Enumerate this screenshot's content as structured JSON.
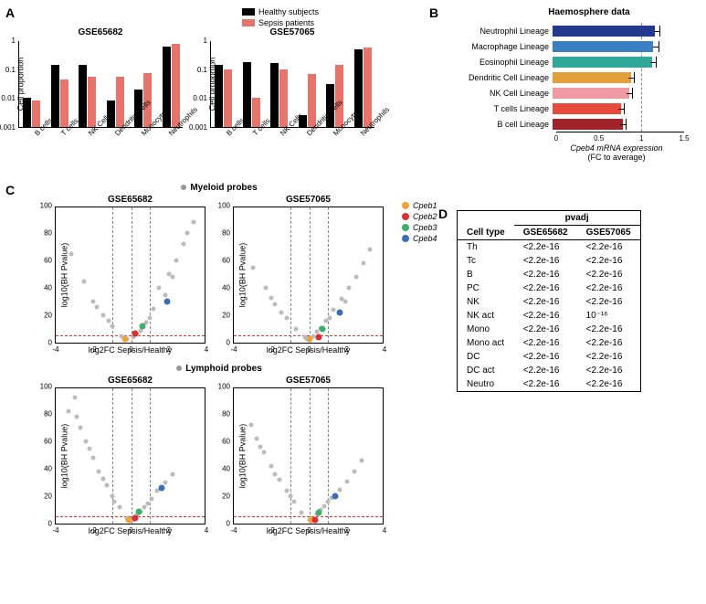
{
  "panelA": {
    "label": "A",
    "legend": [
      {
        "label": "Healthy subjects",
        "color": "#000000"
      },
      {
        "label": "Sepsis patients",
        "color": "#e8736a"
      }
    ],
    "ylabel": "Cell proportion",
    "yticks": [
      {
        "label": "1",
        "value": 1
      },
      {
        "label": "0.1",
        "value": 0.1
      },
      {
        "label": "0.01",
        "value": 0.01
      },
      {
        "label": "0.001",
        "value": 0.001
      }
    ],
    "ymin": 0.001,
    "ymax": 1,
    "charts": [
      {
        "title": "GSE65682",
        "categories": [
          "B cells",
          "T cells",
          "NK Cells",
          "Dendritic Cells",
          "Monocytes",
          "Neutrophils"
        ],
        "healthy": [
          0.01,
          0.14,
          0.14,
          0.008,
          0.02,
          0.62
        ],
        "sepsis": [
          0.008,
          0.045,
          0.055,
          0.055,
          0.075,
          0.75
        ]
      },
      {
        "title": "GSE57065",
        "categories": [
          "B cells",
          "T cells",
          "NK Cells",
          "Dendritic Cells",
          "Monocytes",
          "Neutrophils"
        ],
        "healthy": [
          0.14,
          0.17,
          0.16,
          0.0025,
          0.03,
          0.5
        ],
        "sepsis": [
          0.1,
          0.01,
          0.095,
          0.07,
          0.14,
          0.55
        ]
      }
    ]
  },
  "panelB": {
    "label": "B",
    "title": "Haemosphere data",
    "xlabel_line1": "Cpeb4 mRNA expression",
    "xlabel_line2": "(FC  to average)",
    "xmax": 1.5,
    "xticks": [
      0,
      0.5,
      1.0,
      1.5
    ],
    "dashed_at": 1.0,
    "rows": [
      {
        "label": "Neutrophil Lineage",
        "value": 1.2,
        "err": 0.06,
        "color": "#22398f"
      },
      {
        "label": "Macrophage Lineage",
        "value": 1.18,
        "err": 0.07,
        "color": "#3a7fc3"
      },
      {
        "label": "Eosinophil Lineage",
        "value": 1.17,
        "err": 0.05,
        "color": "#2fa89a"
      },
      {
        "label": "Dendritic Cell Lineage",
        "value": 0.92,
        "err": 0.04,
        "color": "#e6a039"
      },
      {
        "label": "NK Cell Lineage",
        "value": 0.9,
        "err": 0.04,
        "color": "#ef9aa0"
      },
      {
        "label": "T cells Lineage",
        "value": 0.8,
        "err": 0.05,
        "color": "#e54a3b"
      },
      {
        "label": "B cell Lineage",
        "value": 0.82,
        "err": 0.05,
        "color": "#a2242b"
      }
    ]
  },
  "panelC": {
    "label": "C",
    "legend": [
      {
        "label": "Cpeb1",
        "color": "#f0a33c"
      },
      {
        "label": "Cpeb2",
        "color": "#d82f2f"
      },
      {
        "label": "Cpeb3",
        "color": "#3cb06a"
      },
      {
        "label": "Cpeb4",
        "color": "#3b6fb5"
      }
    ],
    "ylabel": "log10(BH Pvalue)",
    "xlabel": "log2FC Sepsis/Healthy",
    "sections": [
      {
        "title": "Myeloid probes",
        "plots": [
          {
            "title": "GSE65682",
            "xlim": [
              -4,
              4
            ],
            "ylim": [
              0,
              100
            ],
            "hline": 5,
            "xticks": [
              -4,
              -2,
              0,
              2,
              4
            ],
            "yticks": [
              0,
              20,
              40,
              60,
              80,
              100
            ],
            "vlines": [
              -1,
              0,
              1
            ],
            "cpeb": {
              "Cpeb1": [
                -0.3,
                3
              ],
              "Cpeb2": [
                0.2,
                7
              ],
              "Cpeb3": [
                0.6,
                12
              ],
              "Cpeb4": [
                1.9,
                30
              ]
            },
            "grey": [
              [
                -3.2,
                65
              ],
              [
                -2.5,
                45
              ],
              [
                -2.0,
                30
              ],
              [
                -1.5,
                20
              ],
              [
                -1.0,
                12
              ],
              [
                -0.5,
                5
              ],
              [
                0.3,
                6
              ],
              [
                0.8,
                15
              ],
              [
                1.2,
                25
              ],
              [
                1.5,
                40
              ],
              [
                2.0,
                50
              ],
              [
                2.4,
                60
              ],
              [
                2.8,
                72
              ],
              [
                3.0,
                80
              ],
              [
                3.3,
                88
              ],
              [
                -0.2,
                3
              ],
              [
                0.1,
                4
              ],
              [
                0.5,
                9
              ],
              [
                1.0,
                18
              ],
              [
                1.8,
                35
              ],
              [
                2.2,
                48
              ],
              [
                -1.8,
                26
              ],
              [
                -1.2,
                16
              ]
            ]
          },
          {
            "title": "GSE57065",
            "xlim": [
              -4,
              4
            ],
            "ylim": [
              0,
              100
            ],
            "hline": 5,
            "xticks": [
              -4,
              -2,
              0,
              2,
              4
            ],
            "yticks": [
              0,
              20,
              40,
              60,
              80,
              100
            ],
            "vlines": [
              -1,
              0,
              1
            ],
            "cpeb": {
              "Cpeb1": [
                0.0,
                3
              ],
              "Cpeb2": [
                0.5,
                4
              ],
              "Cpeb3": [
                0.7,
                10
              ],
              "Cpeb4": [
                1.6,
                22
              ]
            },
            "grey": [
              [
                -3.0,
                55
              ],
              [
                -2.3,
                40
              ],
              [
                -1.8,
                28
              ],
              [
                -1.2,
                18
              ],
              [
                -0.7,
                10
              ],
              [
                -0.2,
                4
              ],
              [
                0.4,
                8
              ],
              [
                0.9,
                16
              ],
              [
                1.3,
                24
              ],
              [
                1.7,
                32
              ],
              [
                2.1,
                40
              ],
              [
                2.5,
                48
              ],
              [
                2.9,
                58
              ],
              [
                3.2,
                68
              ],
              [
                -0.1,
                3
              ],
              [
                0.2,
                5
              ],
              [
                0.6,
                11
              ],
              [
                1.1,
                18
              ],
              [
                1.9,
                30
              ],
              [
                -1.5,
                22
              ],
              [
                -2.0,
                33
              ]
            ]
          }
        ]
      },
      {
        "title": "Lymphoid probes",
        "plots": [
          {
            "title": "GSE65682",
            "xlim": [
              -4,
              4
            ],
            "ylim": [
              0,
              100
            ],
            "hline": 5,
            "xticks": [
              -4,
              -2,
              0,
              2,
              4
            ],
            "yticks": [
              0,
              20,
              40,
              60,
              80,
              100
            ],
            "vlines": [
              -1,
              0,
              1
            ],
            "cpeb": {
              "Cpeb1": [
                -0.1,
                3
              ],
              "Cpeb2": [
                0.2,
                4
              ],
              "Cpeb3": [
                0.4,
                9
              ],
              "Cpeb4": [
                1.6,
                26
              ]
            },
            "grey": [
              [
                -3.3,
                82
              ],
              [
                -3.0,
                92
              ],
              [
                -2.7,
                70
              ],
              [
                -2.4,
                60
              ],
              [
                -2.0,
                48
              ],
              [
                -1.7,
                38
              ],
              [
                -1.3,
                28
              ],
              [
                -1.0,
                20
              ],
              [
                -0.6,
                12
              ],
              [
                -0.2,
                4
              ],
              [
                0.3,
                6
              ],
              [
                0.7,
                12
              ],
              [
                1.1,
                18
              ],
              [
                1.4,
                24
              ],
              [
                1.8,
                30
              ],
              [
                2.2,
                36
              ],
              [
                -2.2,
                55
              ],
              [
                -1.5,
                33
              ],
              [
                -0.9,
                16
              ],
              [
                0.1,
                3
              ],
              [
                0.5,
                9
              ],
              [
                0.9,
                15
              ],
              [
                -2.9,
                78
              ]
            ]
          },
          {
            "title": "GSE57065",
            "xlim": [
              -4,
              4
            ],
            "ylim": [
              0,
              100
            ],
            "hline": 5,
            "xticks": [
              -4,
              -2,
              0,
              2,
              4
            ],
            "yticks": [
              0,
              20,
              40,
              60,
              80,
              100
            ],
            "vlines": [
              -1,
              0,
              1
            ],
            "cpeb": {
              "Cpeb1": [
                0.1,
                3
              ],
              "Cpeb2": [
                0.3,
                3
              ],
              "Cpeb3": [
                0.5,
                8
              ],
              "Cpeb4": [
                1.4,
                20
              ]
            },
            "grey": [
              [
                -3.1,
                72
              ],
              [
                -2.8,
                62
              ],
              [
                -2.4,
                52
              ],
              [
                -2.0,
                42
              ],
              [
                -1.6,
                32
              ],
              [
                -1.2,
                24
              ],
              [
                -0.8,
                16
              ],
              [
                -0.4,
                8
              ],
              [
                0.0,
                3
              ],
              [
                0.4,
                7
              ],
              [
                0.8,
                13
              ],
              [
                1.2,
                19
              ],
              [
                1.6,
                25
              ],
              [
                2.0,
                31
              ],
              [
                2.4,
                38
              ],
              [
                2.8,
                46
              ],
              [
                -1.0,
                20
              ],
              [
                -1.8,
                36
              ],
              [
                -2.6,
                56
              ],
              [
                0.6,
                10
              ],
              [
                1.0,
                16
              ]
            ]
          }
        ]
      }
    ]
  },
  "panelD": {
    "label": "D",
    "header": {
      "col1": "Cell type",
      "group": "pvadj",
      "c2": "GSE65682",
      "c3": "GSE57065"
    },
    "rows": [
      {
        "ct": "Th",
        "a": "<2.2e-16",
        "b": "<2.2e-16"
      },
      {
        "ct": "Tc",
        "a": "<2.2e-16",
        "b": "<2.2e-16"
      },
      {
        "ct": "B",
        "a": "<2.2e-16",
        "b": "<2.2e-16"
      },
      {
        "ct": "PC",
        "a": "<2.2e-16",
        "b": "<2.2e-16"
      },
      {
        "ct": "NK",
        "a": "<2.2e-16",
        "b": "<2.2e-16"
      },
      {
        "ct": "NK act",
        "a": "<2.2e-16",
        "b": "10⁻¹⁶"
      },
      {
        "ct": "Mono",
        "a": "<2.2e-16",
        "b": "<2.2e-16"
      },
      {
        "ct": "Mono act",
        "a": "<2.2e-16",
        "b": "<2.2e-16"
      },
      {
        "ct": "DC",
        "a": "<2.2e-16",
        "b": "<2.2e-16"
      },
      {
        "ct": "DC act",
        "a": "<2.2e-16",
        "b": "<2.2e-16"
      },
      {
        "ct": "Neutro",
        "a": "<2.2e-16",
        "b": "<2.2e-16"
      }
    ]
  }
}
